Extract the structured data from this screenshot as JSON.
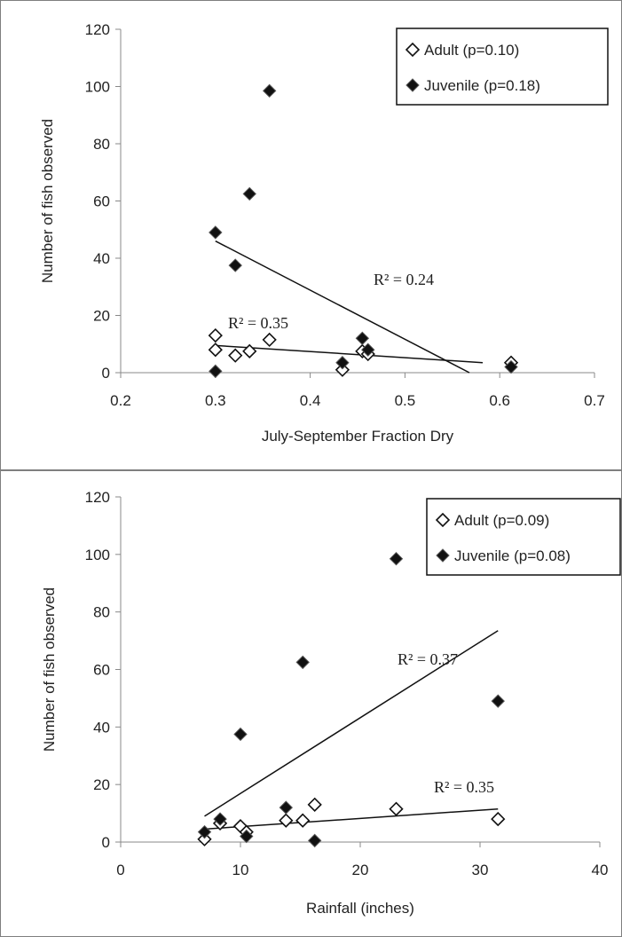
{
  "chart_data": [
    {
      "type": "scatter",
      "title": "",
      "xlabel": "July-September Fraction Dry",
      "ylabel": "Number of fish observed",
      "xlim": [
        0.2,
        0.7
      ],
      "ylim": [
        0,
        120
      ],
      "xticks": [
        "0.2",
        "0.3",
        "0.4",
        "0.5",
        "0.6",
        "0.7"
      ],
      "yticks": [
        "0",
        "20",
        "40",
        "60",
        "80",
        "100",
        "120"
      ],
      "grid": false,
      "legend_position": "top-right",
      "series": [
        {
          "name": "Adult (p=0.10)",
          "marker": "open-diamond",
          "points": [
            [
              0.3,
              13
            ],
            [
              0.3,
              8
            ],
            [
              0.321,
              6
            ],
            [
              0.336,
              7.5
            ],
            [
              0.357,
              11.5
            ],
            [
              0.434,
              1
            ],
            [
              0.455,
              7.5
            ],
            [
              0.461,
              6.5
            ],
            [
              0.612,
              3.5
            ]
          ],
          "trendline": {
            "x": [
              0.3,
              0.582
            ],
            "y": [
              9.5,
              3.5
            ],
            "label": "R² = 0.35"
          }
        },
        {
          "name": "Juvenile (p=0.18)",
          "marker": "filled-diamond",
          "points": [
            [
              0.3,
              49
            ],
            [
              0.3,
              0.5
            ],
            [
              0.321,
              37.5
            ],
            [
              0.336,
              62.5
            ],
            [
              0.357,
              98.5
            ],
            [
              0.434,
              3.5
            ],
            [
              0.455,
              12
            ],
            [
              0.461,
              8
            ],
            [
              0.612,
              2
            ]
          ],
          "trendline": {
            "x": [
              0.3,
              0.568
            ],
            "y": [
              46,
              0
            ],
            "label": "R² = 0.24"
          }
        }
      ]
    },
    {
      "type": "scatter",
      "title": "",
      "xlabel": "Rainfall (inches)",
      "ylabel": "Number of fish observed",
      "xlim": [
        0,
        40
      ],
      "ylim": [
        0,
        120
      ],
      "xticks": [
        "0",
        "10",
        "20",
        "30",
        "40"
      ],
      "yticks": [
        "0",
        "20",
        "40",
        "60",
        "80",
        "100",
        "120"
      ],
      "grid": false,
      "legend_position": "top-right",
      "series": [
        {
          "name": "Adult (p=0.09)",
          "marker": "open-diamond",
          "points": [
            [
              7.0,
              1
            ],
            [
              8.3,
              6.5
            ],
            [
              10.0,
              5.5
            ],
            [
              10.5,
              3.5
            ],
            [
              13.8,
              7.5
            ],
            [
              15.2,
              7.5
            ],
            [
              16.2,
              13
            ],
            [
              23.0,
              11.5
            ],
            [
              31.5,
              8
            ]
          ],
          "trendline": {
            "x": [
              7.0,
              31.5
            ],
            "y": [
              4.5,
              11.5
            ],
            "label": "R² = 0.35"
          }
        },
        {
          "name": "Juvenile (p=0.08)",
          "marker": "filled-diamond",
          "points": [
            [
              7.0,
              3.5
            ],
            [
              8.3,
              8
            ],
            [
              10.0,
              37.5
            ],
            [
              10.5,
              2
            ],
            [
              13.8,
              12
            ],
            [
              15.2,
              62.5
            ],
            [
              16.2,
              0.5
            ],
            [
              23.0,
              98.5
            ],
            [
              31.5,
              49
            ]
          ],
          "trendline": {
            "x": [
              7.0,
              31.5
            ],
            "y": [
              9,
              73.5
            ],
            "label": "R² = 0.37"
          }
        }
      ]
    }
  ]
}
